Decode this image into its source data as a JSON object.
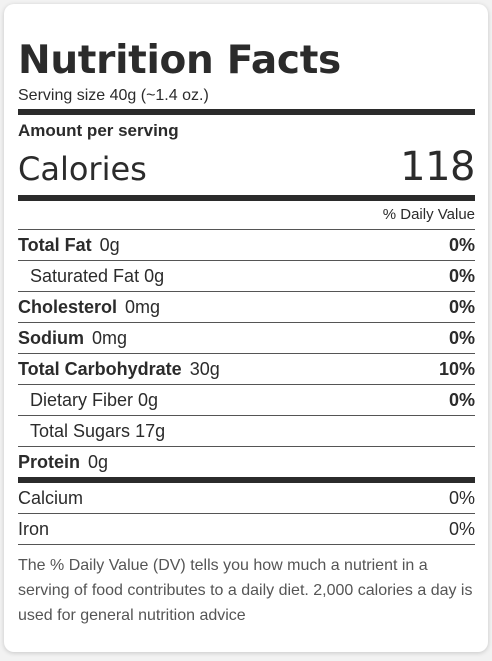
{
  "title": "Nutrition Facts",
  "serving_size": "Serving size 40g (~1.4 oz.)",
  "amount_per_serving": "Amount per serving",
  "calories": {
    "label": "Calories",
    "value": "118"
  },
  "dv_header": "% Daily Value",
  "nutrients": [
    {
      "name": "Total Fat",
      "amount": "0g",
      "dv": "0%"
    },
    {
      "name": "Saturated Fat",
      "amount": "0g",
      "dv": "0%"
    },
    {
      "name": "Cholesterol",
      "amount": "0mg",
      "dv": "0%"
    },
    {
      "name": "Sodium",
      "amount": "0mg",
      "dv": "0%"
    },
    {
      "name": "Total Carbohydrate",
      "amount": "30g",
      "dv": "10%"
    },
    {
      "name": "Dietary Fiber",
      "amount": "0g",
      "dv": "0%"
    },
    {
      "name": "Total Sugars",
      "amount": "17g",
      "dv": ""
    },
    {
      "name": "Protein",
      "amount": "0g",
      "dv": ""
    }
  ],
  "minerals": [
    {
      "name": "Calcium",
      "dv": "0%"
    },
    {
      "name": "Iron",
      "dv": "0%"
    }
  ],
  "footnote": "The % Daily Value (DV) tells you how much a nutrient in a serving of food contributes to a daily diet. 2,000 calories a day is used for general nutrition advice"
}
